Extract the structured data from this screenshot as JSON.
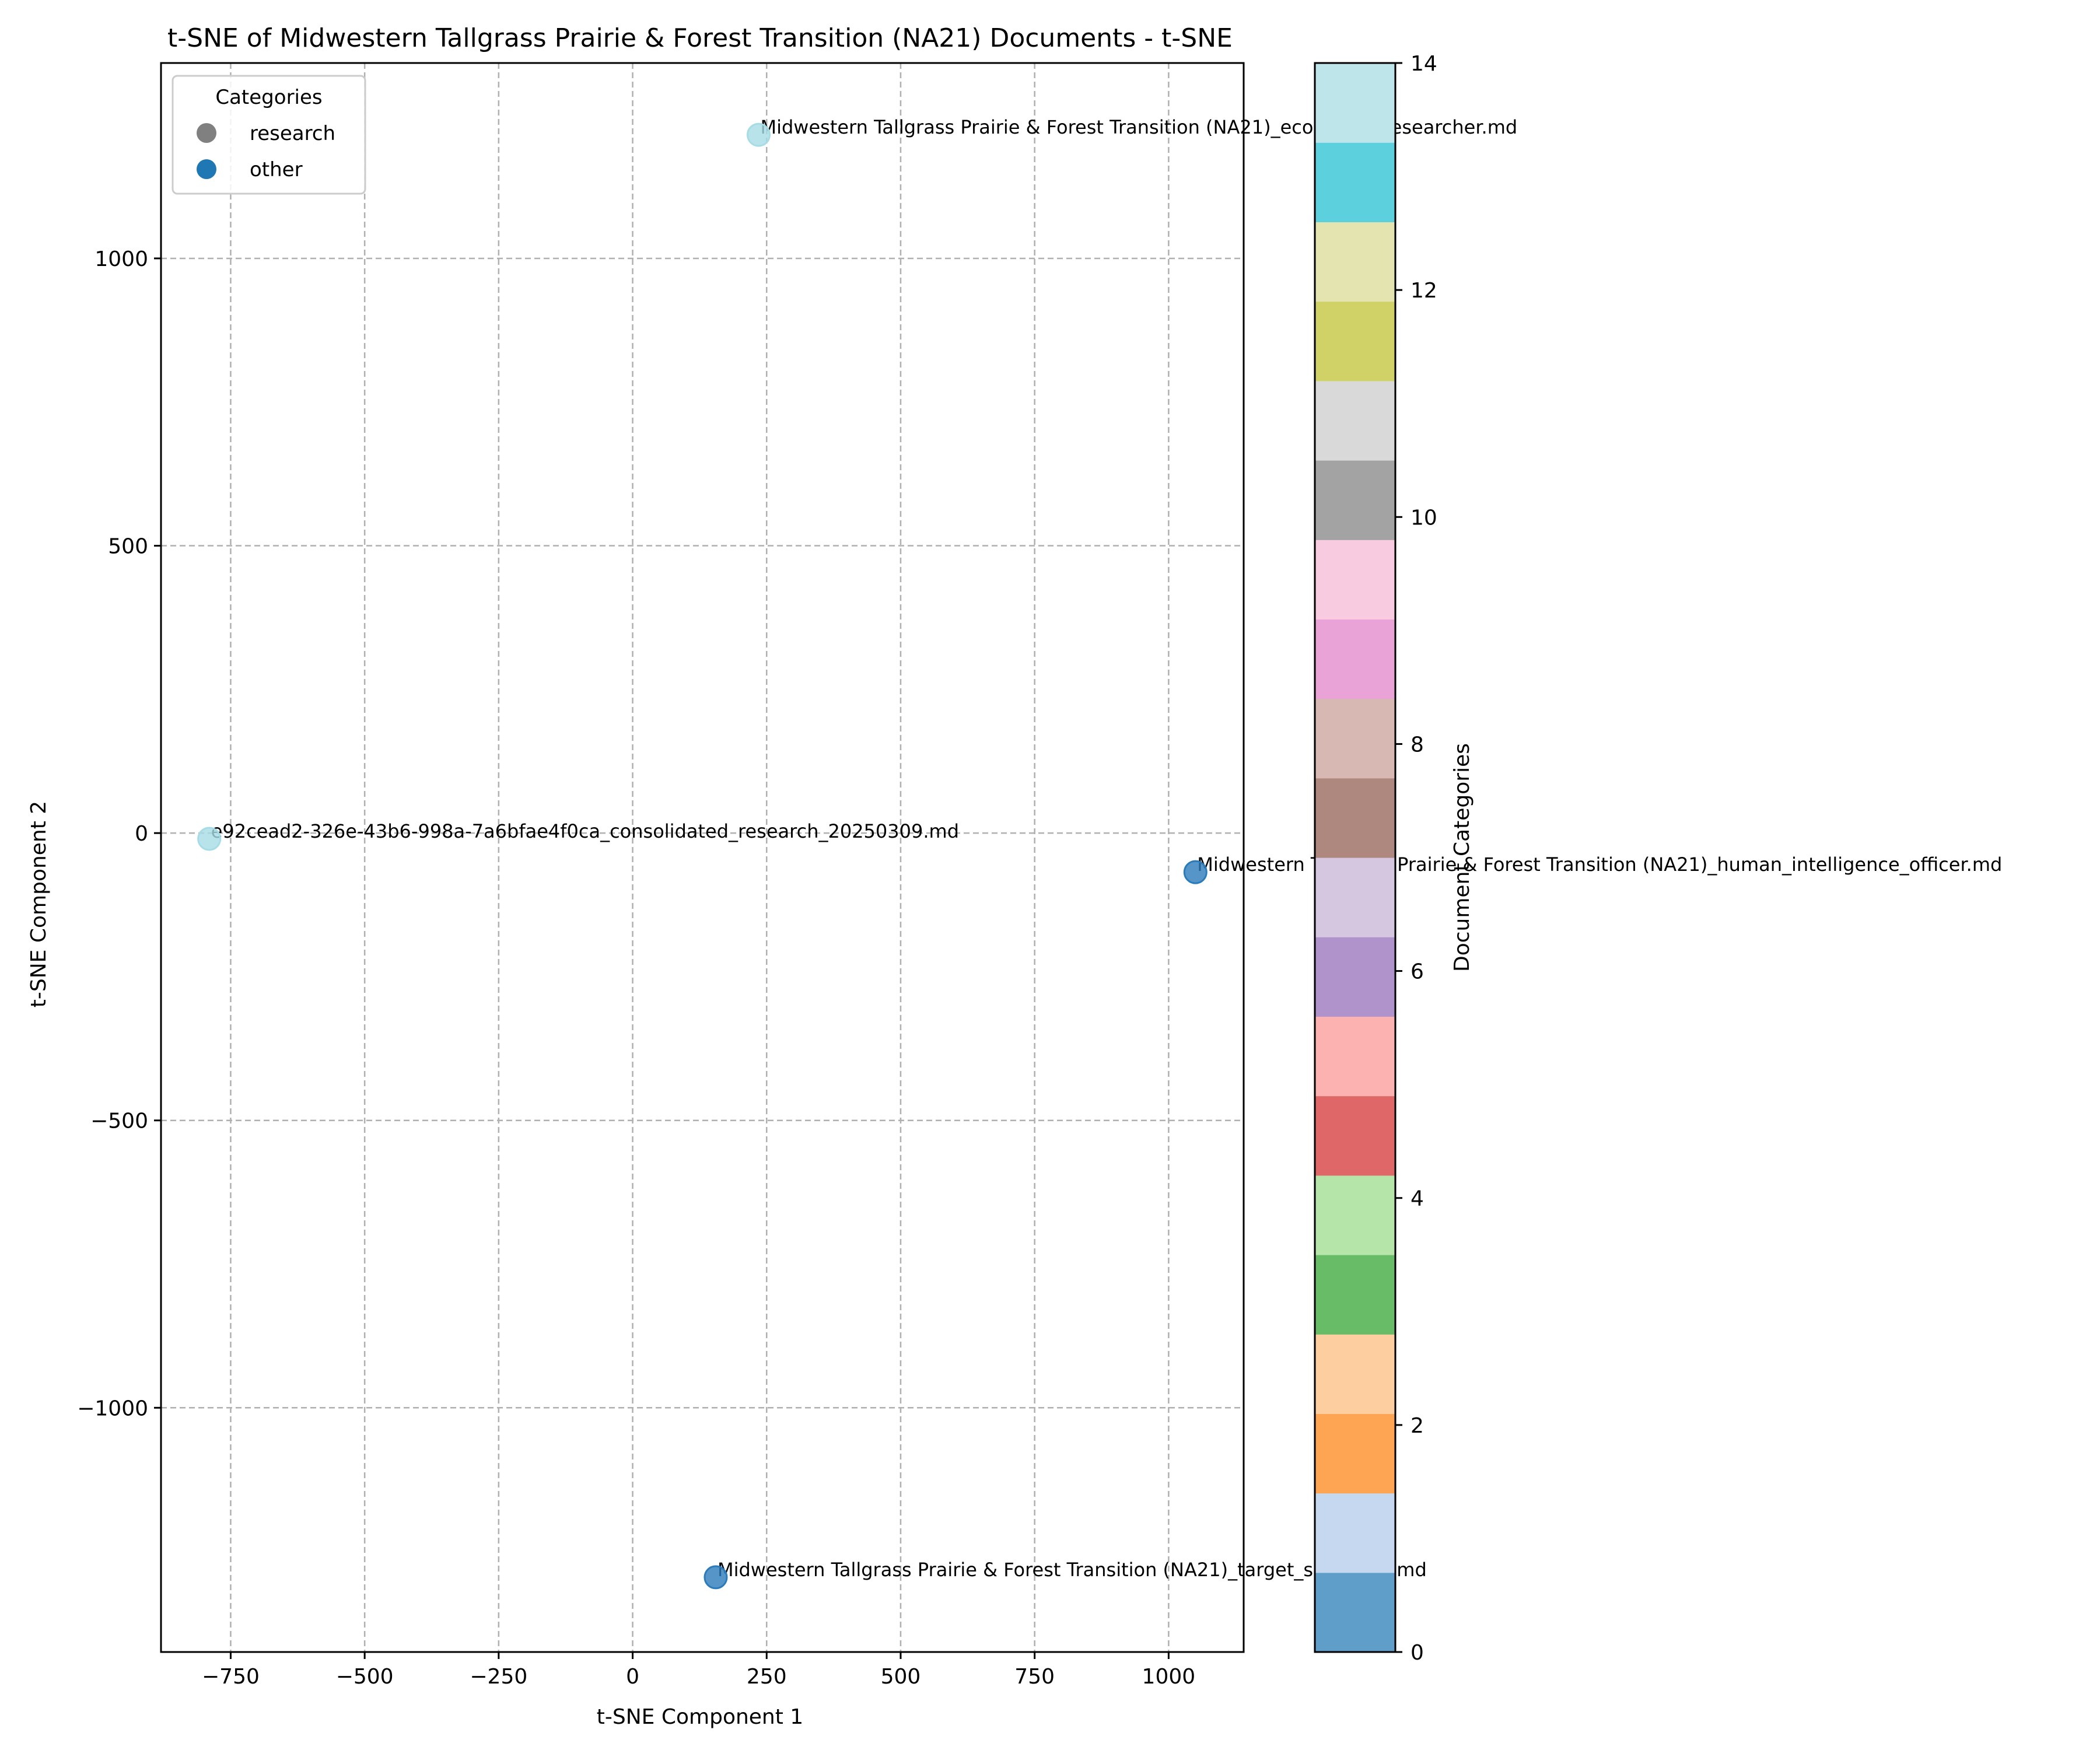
{
  "chart_data": {
    "type": "scatter",
    "title": "t-SNE of Midwestern Tallgrass Prairie & Forest Transition (NA21) Documents - t-SNE",
    "xlabel": "t-SNE Component 1",
    "ylabel": "t-SNE Component 2",
    "xlim": [
      -880,
      1140
    ],
    "ylim": [
      -1425,
      1340
    ],
    "xticks": [
      -750,
      -500,
      -250,
      0,
      250,
      500,
      750,
      1000
    ],
    "xtick_labels": [
      "−750",
      "−500",
      "−250",
      "0",
      "250",
      "500",
      "750",
      "1000"
    ],
    "yticks": [
      -1000,
      -500,
      0,
      500,
      1000
    ],
    "ytick_labels": [
      "−1000",
      "−500",
      "0",
      "500",
      "1000"
    ],
    "grid": true,
    "legend": {
      "title": "Categories",
      "position": "top-left",
      "entries": [
        {
          "label": "research",
          "color": "#808080"
        },
        {
          "label": "other",
          "color": "#1f77b4"
        }
      ]
    },
    "points": [
      {
        "x": 235,
        "y": 1215,
        "category": 14,
        "color": "#a6dce6",
        "label": "Midwestern Tallgrass Prairie & Forest Transition (NA21)_ecological_researcher.md"
      },
      {
        "x": -790,
        "y": -10,
        "category": 14,
        "color": "#a6dce6",
        "label": "e92cead2-326e-43b6-998a-7a6bfae4f0ca_consolidated_research_20250309.md"
      },
      {
        "x": 1050,
        "y": -68,
        "category": 0,
        "color": "#2b7bba",
        "label": "Midwestern Tallgrass Prairie & Forest Transition (NA21)_human_intelligence_officer.md"
      },
      {
        "x": 155,
        "y": -1295,
        "category": 0,
        "color": "#2b7bba",
        "label": "Midwestern Tallgrass Prairie & Forest Transition (NA21)_target_specialist.md"
      }
    ],
    "colorbar": {
      "label": "Document Categories",
      "range": [
        0,
        14
      ],
      "ticks": [
        0,
        2,
        4,
        6,
        8,
        10,
        12,
        14
      ],
      "colors": [
        "#5f9ec9",
        "#c6d8ef",
        "#fda552",
        "#fdcfa0",
        "#68bc68",
        "#b5e5a9",
        "#e06767",
        "#fdb2b2",
        "#b193cc",
        "#d6c7e0",
        "#ae877f",
        "#d7b8b3",
        "#e9a3d6",
        "#f8cbe1",
        "#a3a3a3",
        "#d9d9d9",
        "#d0d166",
        "#e4e4b0",
        "#5cd0dc",
        "#bde5ea"
      ]
    }
  }
}
